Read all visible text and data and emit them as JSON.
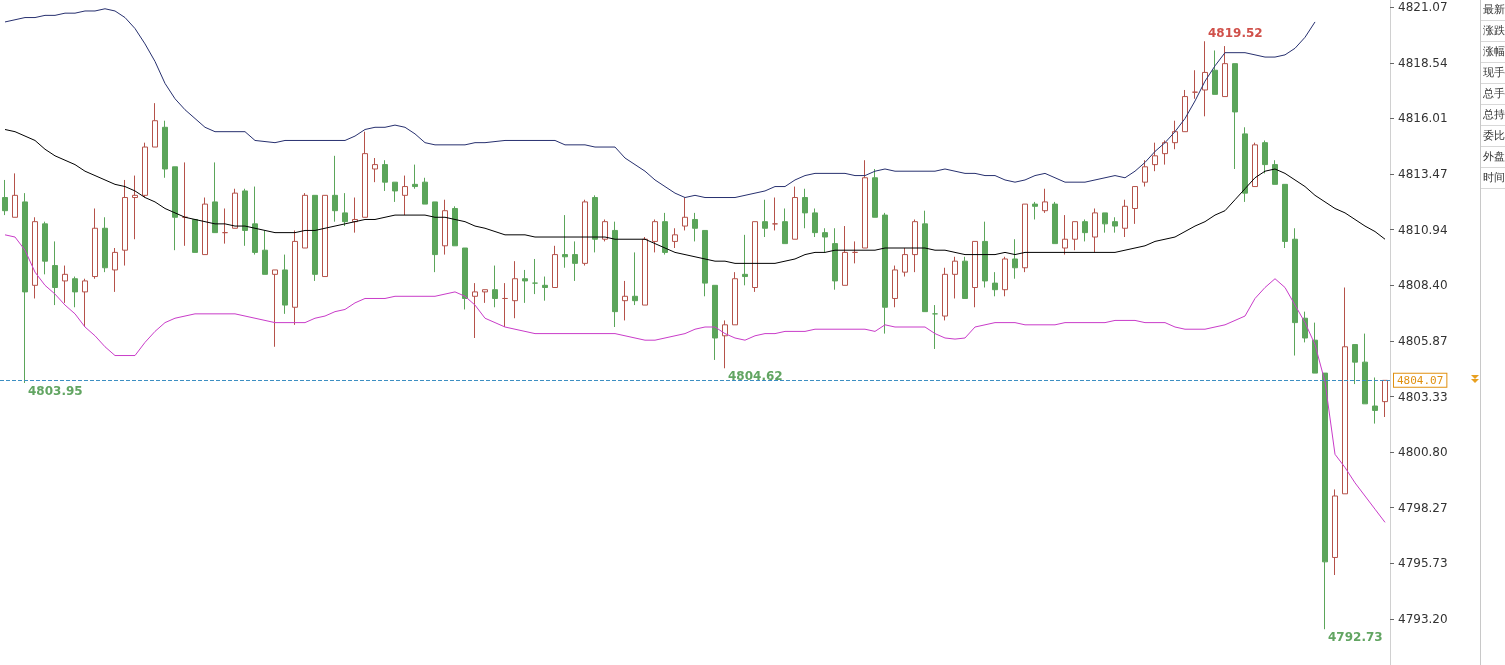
{
  "chart_data": {
    "type": "candlestick",
    "categories": [
      null,
      null,
      null,
      null,
      null,
      null,
      null,
      null,
      null,
      null,
      null,
      null,
      null,
      null,
      null,
      null,
      null,
      null,
      null,
      null,
      null,
      null,
      null,
      null,
      null,
      null,
      null,
      null,
      null,
      null,
      null,
      null,
      null,
      null,
      null,
      null,
      null,
      null,
      null,
      null,
      null,
      null,
      null,
      null,
      null,
      null,
      null,
      null,
      null,
      null,
      null,
      null,
      null,
      null,
      null,
      null,
      null,
      null,
      null,
      null,
      null,
      null,
      null,
      null,
      null,
      null,
      null,
      null,
      null,
      null,
      null,
      null,
      null,
      null,
      null,
      null,
      null,
      null,
      null,
      null,
      null,
      null,
      null,
      null,
      null,
      null,
      null,
      null,
      null,
      null,
      null,
      null,
      null,
      null,
      null,
      null,
      null,
      null,
      null,
      null,
      null,
      null,
      null,
      null,
      null,
      null,
      null,
      null,
      null,
      null,
      null,
      null,
      null,
      null,
      null,
      null,
      null,
      null,
      null,
      null,
      null,
      null,
      null,
      null,
      null,
      null,
      null,
      null,
      null,
      null,
      null,
      null,
      null,
      null,
      null,
      null,
      null,
      null,
      null
    ],
    "ohlc": [
      [
        4812.4,
        4813.2,
        4811.6,
        4811.8
      ],
      [
        4811.5,
        4813.5,
        4811.5,
        4812.5
      ],
      [
        4812.2,
        4812.6,
        4803.95,
        4808.1
      ],
      [
        4808.4,
        4811.5,
        4807.8,
        4811.3
      ],
      [
        4811.2,
        4811.3,
        4808.9,
        4809.5
      ],
      [
        4809.3,
        4810.4,
        4807.5,
        4808.3
      ],
      [
        4808.6,
        4809.3,
        4807.6,
        4808.9
      ],
      [
        4808.7,
        4808.8,
        4807.4,
        4808.1
      ],
      [
        4808.1,
        4808.7,
        4806.5,
        4808.6
      ],
      [
        4808.8,
        4811.9,
        4808.7,
        4811.0
      ],
      [
        4811.0,
        4811.5,
        4809.0,
        4809.2
      ],
      [
        4809.1,
        4810.1,
        4808.1,
        4809.9
      ],
      [
        4810.0,
        4813.2,
        4809.3,
        4812.4
      ],
      [
        4812.4,
        4813.4,
        4810.5,
        4812.5
      ],
      [
        4812.5,
        4814.9,
        4812.4,
        4814.7
      ],
      [
        4814.7,
        4816.7,
        4814.7,
        4815.9
      ],
      [
        4815.6,
        4815.9,
        4813.3,
        4813.7
      ],
      [
        4813.8,
        4813.8,
        4810.0,
        4811.5
      ],
      [
        4811.5,
        4814.0,
        4810.2,
        4811.5
      ],
      [
        4811.4,
        4811.4,
        4809.9,
        4809.9
      ],
      [
        4809.8,
        4812.4,
        4809.8,
        4812.1
      ],
      [
        4812.2,
        4814.0,
        4810.8,
        4810.8
      ],
      [
        4810.8,
        4811.9,
        4810.3,
        4810.8
      ],
      [
        4811.0,
        4812.8,
        4811.0,
        4812.6
      ],
      [
        4812.7,
        4812.8,
        4810.2,
        4810.9
      ],
      [
        4811.2,
        4812.9,
        4809.8,
        4809.9
      ],
      [
        4810.0,
        4810.9,
        4808.9,
        4808.9
      ],
      [
        4808.9,
        4809.1,
        4805.6,
        4809.1
      ],
      [
        4809.1,
        4809.8,
        4807.1,
        4807.5
      ],
      [
        4807.4,
        4810.9,
        4806.6,
        4810.4
      ],
      [
        4810.1,
        4812.6,
        4810.1,
        4812.5
      ],
      [
        4812.5,
        4812.5,
        4808.6,
        4808.9
      ],
      [
        4808.8,
        4812.5,
        4808.8,
        4812.5
      ],
      [
        4812.5,
        4814.3,
        4811.3,
        4811.8
      ],
      [
        4811.7,
        4812.6,
        4811.1,
        4811.3
      ],
      [
        4811.3,
        4812.4,
        4810.8,
        4811.4
      ],
      [
        4811.5,
        4815.4,
        4811.5,
        4814.4
      ],
      [
        4813.7,
        4814.2,
        4813.1,
        4813.9
      ],
      [
        4813.9,
        4814.1,
        4812.7,
        4813.1
      ],
      [
        4813.1,
        4813.1,
        4812.2,
        4812.7
      ],
      [
        4812.5,
        4813.4,
        4811.6,
        4812.9
      ],
      [
        4813.0,
        4813.9,
        4812.8,
        4812.9
      ],
      [
        4813.1,
        4813.3,
        4812.1,
        4812.1
      ],
      [
        4812.2,
        4812.2,
        4809.0,
        4809.8
      ],
      [
        4810.2,
        4812.3,
        4809.8,
        4811.8
      ],
      [
        4811.9,
        4812.0,
        4810.2,
        4810.2
      ],
      [
        4810.1,
        4810.1,
        4807.3,
        4807.8
      ],
      [
        4807.9,
        4808.5,
        4806.0,
        4808.1
      ],
      [
        4808.1,
        4808.2,
        4807.6,
        4808.2
      ],
      [
        4808.2,
        4809.3,
        4807.4,
        4807.8
      ],
      [
        4807.8,
        4808.5,
        4806.5,
        4807.8
      ],
      [
        4807.7,
        4809.5,
        4806.9,
        4808.7
      ],
      [
        4808.7,
        4809.1,
        4807.6,
        4808.6
      ],
      [
        4808.5,
        4809.6,
        4808.0,
        4808.5
      ],
      [
        4808.4,
        4808.8,
        4807.7,
        4808.3
      ],
      [
        4808.3,
        4810.2,
        4808.3,
        4809.8
      ],
      [
        4809.8,
        4811.6,
        4809.2,
        4809.7
      ],
      [
        4809.8,
        4810.4,
        4808.6,
        4809.4
      ],
      [
        4809.4,
        4812.3,
        4809.3,
        4812.2
      ],
      [
        4812.4,
        4812.5,
        4809.9,
        4810.5
      ],
      [
        4810.5,
        4811.4,
        4810.4,
        4811.3
      ],
      [
        4810.9,
        4811.3,
        4806.5,
        4807.2
      ],
      [
        4807.7,
        4808.6,
        4806.8,
        4807.9
      ],
      [
        4807.9,
        4809.9,
        4807.5,
        4807.7
      ],
      [
        4807.5,
        4810.6,
        4807.5,
        4810.5
      ],
      [
        4810.4,
        4811.4,
        4809.9,
        4811.3
      ],
      [
        4811.3,
        4811.7,
        4809.8,
        4809.9
      ],
      [
        4810.4,
        4811.0,
        4810.1,
        4810.7
      ],
      [
        4811.1,
        4812.4,
        4810.9,
        4811.5
      ],
      [
        4811.4,
        4811.7,
        4810.4,
        4811.0
      ],
      [
        4810.9,
        4810.9,
        4807.9,
        4808.5
      ],
      [
        4808.4,
        4808.4,
        4805.0,
        4806.0
      ],
      [
        4806.1,
        4806.8,
        4804.62,
        4806.6
      ],
      [
        4806.6,
        4809.0,
        4806.6,
        4808.7
      ],
      [
        4808.9,
        4810.7,
        4808.4,
        4808.8
      ],
      [
        4808.3,
        4811.3,
        4808.1,
        4811.3
      ],
      [
        4811.3,
        4812.3,
        4810.6,
        4811.0
      ],
      [
        4811.2,
        4812.4,
        4810.9,
        4811.2
      ],
      [
        4811.3,
        4811.9,
        4810.3,
        4810.3
      ],
      [
        4810.5,
        4812.9,
        4810.5,
        4812.4
      ],
      [
        4812.4,
        4812.8,
        4811.0,
        4811.7
      ],
      [
        4811.7,
        4811.9,
        4810.6,
        4810.8
      ],
      [
        4810.8,
        4811.0,
        4809.9,
        4810.6
      ],
      [
        4810.3,
        4811.0,
        4808.2,
        4808.6
      ],
      [
        4808.4,
        4811.1,
        4808.4,
        4809.9
      ],
      [
        4809.9,
        4810.4,
        4809.4,
        4809.9
      ],
      [
        4810.1,
        4814.1,
        4810.1,
        4813.3
      ],
      [
        4813.3,
        4813.7,
        4811.5,
        4811.5
      ],
      [
        4811.6,
        4811.7,
        4806.2,
        4807.4
      ],
      [
        4807.8,
        4809.3,
        4807.4,
        4809.1
      ],
      [
        4809.0,
        4810.1,
        4808.8,
        4809.8
      ],
      [
        4809.8,
        4811.4,
        4809.0,
        4811.3
      ],
      [
        4811.2,
        4811.8,
        4807.2,
        4807.2
      ],
      [
        4807.1,
        4807.5,
        4805.5,
        4807.1
      ],
      [
        4807.0,
        4809.2,
        4806.8,
        4808.9
      ],
      [
        4808.9,
        4809.7,
        4807.8,
        4809.5
      ],
      [
        4809.5,
        4809.7,
        4807.8,
        4807.8
      ],
      [
        4808.3,
        4810.4,
        4807.4,
        4810.4
      ],
      [
        4810.4,
        4811.3,
        4808.3,
        4808.6
      ],
      [
        4808.5,
        4809.0,
        4807.9,
        4808.2
      ],
      [
        4808.2,
        4809.7,
        4807.9,
        4809.6
      ],
      [
        4809.6,
        4810.5,
        4808.7,
        4809.2
      ],
      [
        4809.2,
        4812.1,
        4809.0,
        4812.1
      ],
      [
        4812.1,
        4812.2,
        4811.4,
        4812.0
      ],
      [
        4811.8,
        4812.8,
        4811.7,
        4812.2
      ],
      [
        4812.1,
        4812.2,
        4810.3,
        4810.3
      ],
      [
        4810.1,
        4811.6,
        4809.8,
        4810.5
      ],
      [
        4810.5,
        4811.3,
        4810.0,
        4811.3
      ],
      [
        4811.3,
        4811.4,
        4810.4,
        4810.8
      ],
      [
        4810.6,
        4811.9,
        4809.9,
        4811.7
      ],
      [
        4811.7,
        4811.7,
        4810.8,
        4811.2
      ],
      [
        4811.3,
        4811.5,
        4810.8,
        4811.1
      ],
      [
        4811.0,
        4812.3,
        4810.6,
        4812.0
      ],
      [
        4811.9,
        4812.9,
        4811.2,
        4812.9
      ],
      [
        4813.1,
        4814.1,
        4812.9,
        4813.8
      ],
      [
        4813.9,
        4814.9,
        4813.6,
        4814.3
      ],
      [
        4814.4,
        4815.0,
        4813.9,
        4814.9
      ],
      [
        4814.9,
        4815.9,
        4814.6,
        4815.4
      ],
      [
        4815.4,
        4817.3,
        4815.4,
        4817.0
      ],
      [
        4817.2,
        4818.2,
        4816.9,
        4817.2
      ],
      [
        4817.3,
        4819.52,
        4816.1,
        4818.1
      ],
      [
        4818.2,
        4819.1,
        4817.1,
        4817.1
      ],
      [
        4817.0,
        4819.3,
        4817.0,
        4818.5
      ],
      [
        4818.5,
        4818.5,
        4813.7,
        4816.3
      ],
      [
        4815.3,
        4815.6,
        4812.2,
        4812.6
      ],
      [
        4812.9,
        4814.9,
        4812.9,
        4814.8
      ],
      [
        4814.9,
        4815.0,
        4813.5,
        4813.9
      ],
      [
        4813.9,
        4814.1,
        4813.0,
        4813.0
      ],
      [
        4813.0,
        4813.0,
        4810.1,
        4810.4
      ],
      [
        4810.5,
        4811.0,
        4805.2,
        4806.7
      ],
      [
        4806.9,
        4807.2,
        4805.8,
        4806.0
      ],
      [
        4805.9,
        4806.7,
        4804.4,
        4804.4
      ],
      [
        4804.4,
        4804.4,
        4792.73,
        4795.8
      ],
      [
        4796.0,
        4799.1,
        4795.2,
        4798.8
      ],
      [
        4798.9,
        4808.3,
        4798.9,
        4805.6
      ],
      [
        4805.7,
        4805.7,
        4803.9,
        4804.9
      ],
      [
        4804.9,
        4806.2,
        4803.0,
        4803.0
      ],
      [
        4802.9,
        4804.2,
        4802.1,
        4802.7
      ],
      [
        4803.1,
        4804.07,
        4802.4,
        4804.07
      ]
    ],
    "series": [
      {
        "type": "line",
        "color": "#27306f",
        "values": [
          4820.4,
          4820.5,
          4820.6,
          4820.6,
          4820.7,
          4820.7,
          4820.8,
          4820.8,
          4820.9,
          4820.9,
          4821.0,
          4820.9,
          4820.6,
          4820.1,
          4819.4,
          4818.6,
          4817.6,
          4816.9,
          4816.4,
          4816.0,
          4815.6,
          4815.4,
          4815.4,
          4815.4,
          4815.4,
          4815.0,
          4814.95,
          4814.9,
          4815.0,
          4815.0,
          4815.0,
          4815.0,
          4815.0,
          4815.0,
          4815.0,
          4815.2,
          4815.5,
          4815.6,
          4815.6,
          4815.7,
          4815.6,
          4815.3,
          4814.9,
          4814.8,
          4814.8,
          4814.8,
          4814.8,
          4814.9,
          4814.9,
          4814.95,
          4815.0,
          4815.0,
          4815.0,
          4815.0,
          4815.0,
          4815.0,
          4814.8,
          4814.8,
          4814.8,
          4814.7,
          4814.7,
          4814.7,
          4814.2,
          4813.9,
          4813.6,
          4813.2,
          4812.9,
          4812.6,
          4812.4,
          4812.5,
          4812.4,
          4812.4,
          4812.4,
          4812.4,
          4812.5,
          4812.6,
          4812.7,
          4812.9,
          4812.9,
          4813.2,
          4813.4,
          4813.5,
          4813.5,
          4813.5,
          4813.5,
          4813.4,
          4813.4,
          4813.6,
          4813.7,
          4813.6,
          4813.6,
          4813.6,
          4813.6,
          4813.6,
          4813.7,
          4813.6,
          4813.5,
          4813.5,
          4813.4,
          4813.4,
          4813.2,
          4813.1,
          4813.2,
          4813.4,
          4813.5,
          4813.3,
          4813.1,
          4813.1,
          4813.1,
          4813.2,
          4813.3,
          4813.4,
          4813.3,
          4813.6,
          4814.0,
          4814.5,
          4814.9,
          4815.4,
          4816.0,
          4816.8,
          4817.7,
          4818.4,
          4819.0,
          4819.0,
          4819.0,
          4818.9,
          4818.8,
          4818.8,
          4818.9,
          4819.2,
          4819.7,
          4820.4,
          null,
          null,
          null,
          null,
          null,
          null,
          null
        ]
      },
      {
        "type": "line",
        "color": "#000000",
        "values": [
          4815.5,
          4815.4,
          4815.2,
          4815.0,
          4814.6,
          4814.3,
          4814.1,
          4813.9,
          4813.6,
          4813.4,
          4813.2,
          4813.0,
          4812.9,
          4812.7,
          4812.4,
          4812.2,
          4811.9,
          4811.7,
          4811.5,
          4811.4,
          4811.3,
          4811.2,
          4811.2,
          4811.1,
          4811.1,
          4811.0,
          4810.9,
          4810.8,
          4810.8,
          4810.8,
          4810.9,
          4810.9,
          4811.0,
          4811.1,
          4811.2,
          4811.3,
          4811.4,
          4811.4,
          4811.5,
          4811.6,
          4811.6,
          4811.6,
          4811.6,
          4811.5,
          4811.5,
          4811.4,
          4811.3,
          4811.1,
          4811.0,
          4810.85,
          4810.7,
          4810.7,
          4810.7,
          4810.6,
          4810.6,
          4810.6,
          4810.6,
          4810.6,
          4810.6,
          4810.6,
          4810.6,
          4810.5,
          4810.5,
          4810.5,
          4810.5,
          4810.3,
          4810.1,
          4809.9,
          4809.8,
          4809.7,
          4809.6,
          4809.5,
          4809.5,
          4809.4,
          4809.4,
          4809.4,
          4809.4,
          4809.4,
          4809.5,
          4809.6,
          4809.8,
          4809.9,
          4809.9,
          4810.0,
          4810.0,
          4810.0,
          4810.0,
          4810.0,
          4810.1,
          4810.1,
          4810.1,
          4810.1,
          4810.1,
          4810.0,
          4810.0,
          4809.9,
          4809.8,
          4809.8,
          4809.8,
          4809.8,
          4809.9,
          4809.8,
          4809.9,
          4809.9,
          4809.9,
          4809.9,
          4809.9,
          4809.9,
          4809.9,
          4809.9,
          4809.9,
          4809.9,
          4810.0,
          4810.1,
          4810.2,
          4810.4,
          4810.5,
          4810.6,
          4810.85,
          4811.1,
          4811.3,
          4811.6,
          4811.8,
          4812.3,
          4812.8,
          4813.3,
          4813.6,
          4813.7,
          4813.5,
          4813.2,
          4812.9,
          4812.5,
          4812.2,
          4811.9,
          4811.7,
          4811.4,
          4811.1,
          4810.85,
          4810.5
        ]
      },
      {
        "type": "line",
        "color": "#c93cc9",
        "values": [
          4810.7,
          4810.6,
          4810.0,
          4809.0,
          4808.4,
          4808.0,
          4807.5,
          4807.1,
          4806.5,
          4806.1,
          4805.6,
          4805.2,
          4805.2,
          4805.2,
          4805.8,
          4806.3,
          4806.7,
          4806.9,
          4807.0,
          4807.1,
          4807.1,
          4807.1,
          4807.1,
          4807.1,
          4807.0,
          4806.9,
          4806.8,
          4806.7,
          4806.7,
          4806.7,
          4806.7,
          4806.9,
          4807.0,
          4807.2,
          4807.3,
          4807.6,
          4807.8,
          4807.8,
          4807.8,
          4807.9,
          4807.9,
          4807.9,
          4807.9,
          4807.9,
          4808.0,
          4808.1,
          4807.9,
          4807.5,
          4806.9,
          4806.7,
          4806.5,
          4806.4,
          4806.3,
          4806.2,
          4806.2,
          4806.2,
          4806.2,
          4806.2,
          4806.2,
          4806.2,
          4806.2,
          4806.2,
          4806.1,
          4806.0,
          4805.9,
          4805.9,
          4806.0,
          4806.1,
          4806.2,
          4806.4,
          4806.5,
          4806.5,
          4806.2,
          4806.0,
          4805.9,
          4806.1,
          4806.2,
          4806.2,
          4806.3,
          4806.3,
          4806.3,
          4806.4,
          4806.4,
          4806.4,
          4806.4,
          4806.4,
          4806.4,
          4806.3,
          4806.6,
          4806.5,
          4806.5,
          4806.5,
          4806.5,
          4806.2,
          4806.0,
          4805.95,
          4806.0,
          4806.5,
          4806.6,
          4806.7,
          4806.7,
          4806.7,
          4806.6,
          4806.6,
          4806.6,
          4806.6,
          4806.7,
          4806.7,
          4806.7,
          4806.7,
          4806.7,
          4806.8,
          4806.8,
          4806.8,
          4806.7,
          4806.7,
          4806.7,
          4806.5,
          4806.4,
          4806.4,
          4806.4,
          4806.5,
          4806.6,
          4806.8,
          4807.0,
          4807.8,
          4808.3,
          4808.7,
          4808.3,
          4807.5,
          4806.7,
          4805.7,
          4804.0,
          4800.7,
          4800.1,
          4799.4,
          4798.8,
          4798.2,
          4797.6
        ]
      }
    ],
    "ylim": [
      4791.1,
      4821.4
    ],
    "yticks": [
      4821.07,
      4818.54,
      4816.01,
      4813.47,
      4810.94,
      {
        "value": 4808.4,
        "label": "4808.40"
      },
      4805.87,
      4803.33,
      {
        "value": 4800.8,
        "label": "4800.80"
      },
      4798.27,
      4795.73,
      {
        "value": 4793.2,
        "label": "4793.20"
      }
    ],
    "ref_lines": [
      {
        "axis": "y",
        "value": 4804.07,
        "label": "4804.07",
        "color": "#3d8fc2",
        "line_style": "dashed"
      }
    ],
    "annotations": [
      "4819.52",
      "4803.95",
      "4804.62",
      "4792.73",
      "最新",
      "涨跌",
      "涨幅",
      "现手",
      "总手",
      "总持",
      "委比",
      "外盘",
      "时间"
    ],
    "marker": "none"
  }
}
